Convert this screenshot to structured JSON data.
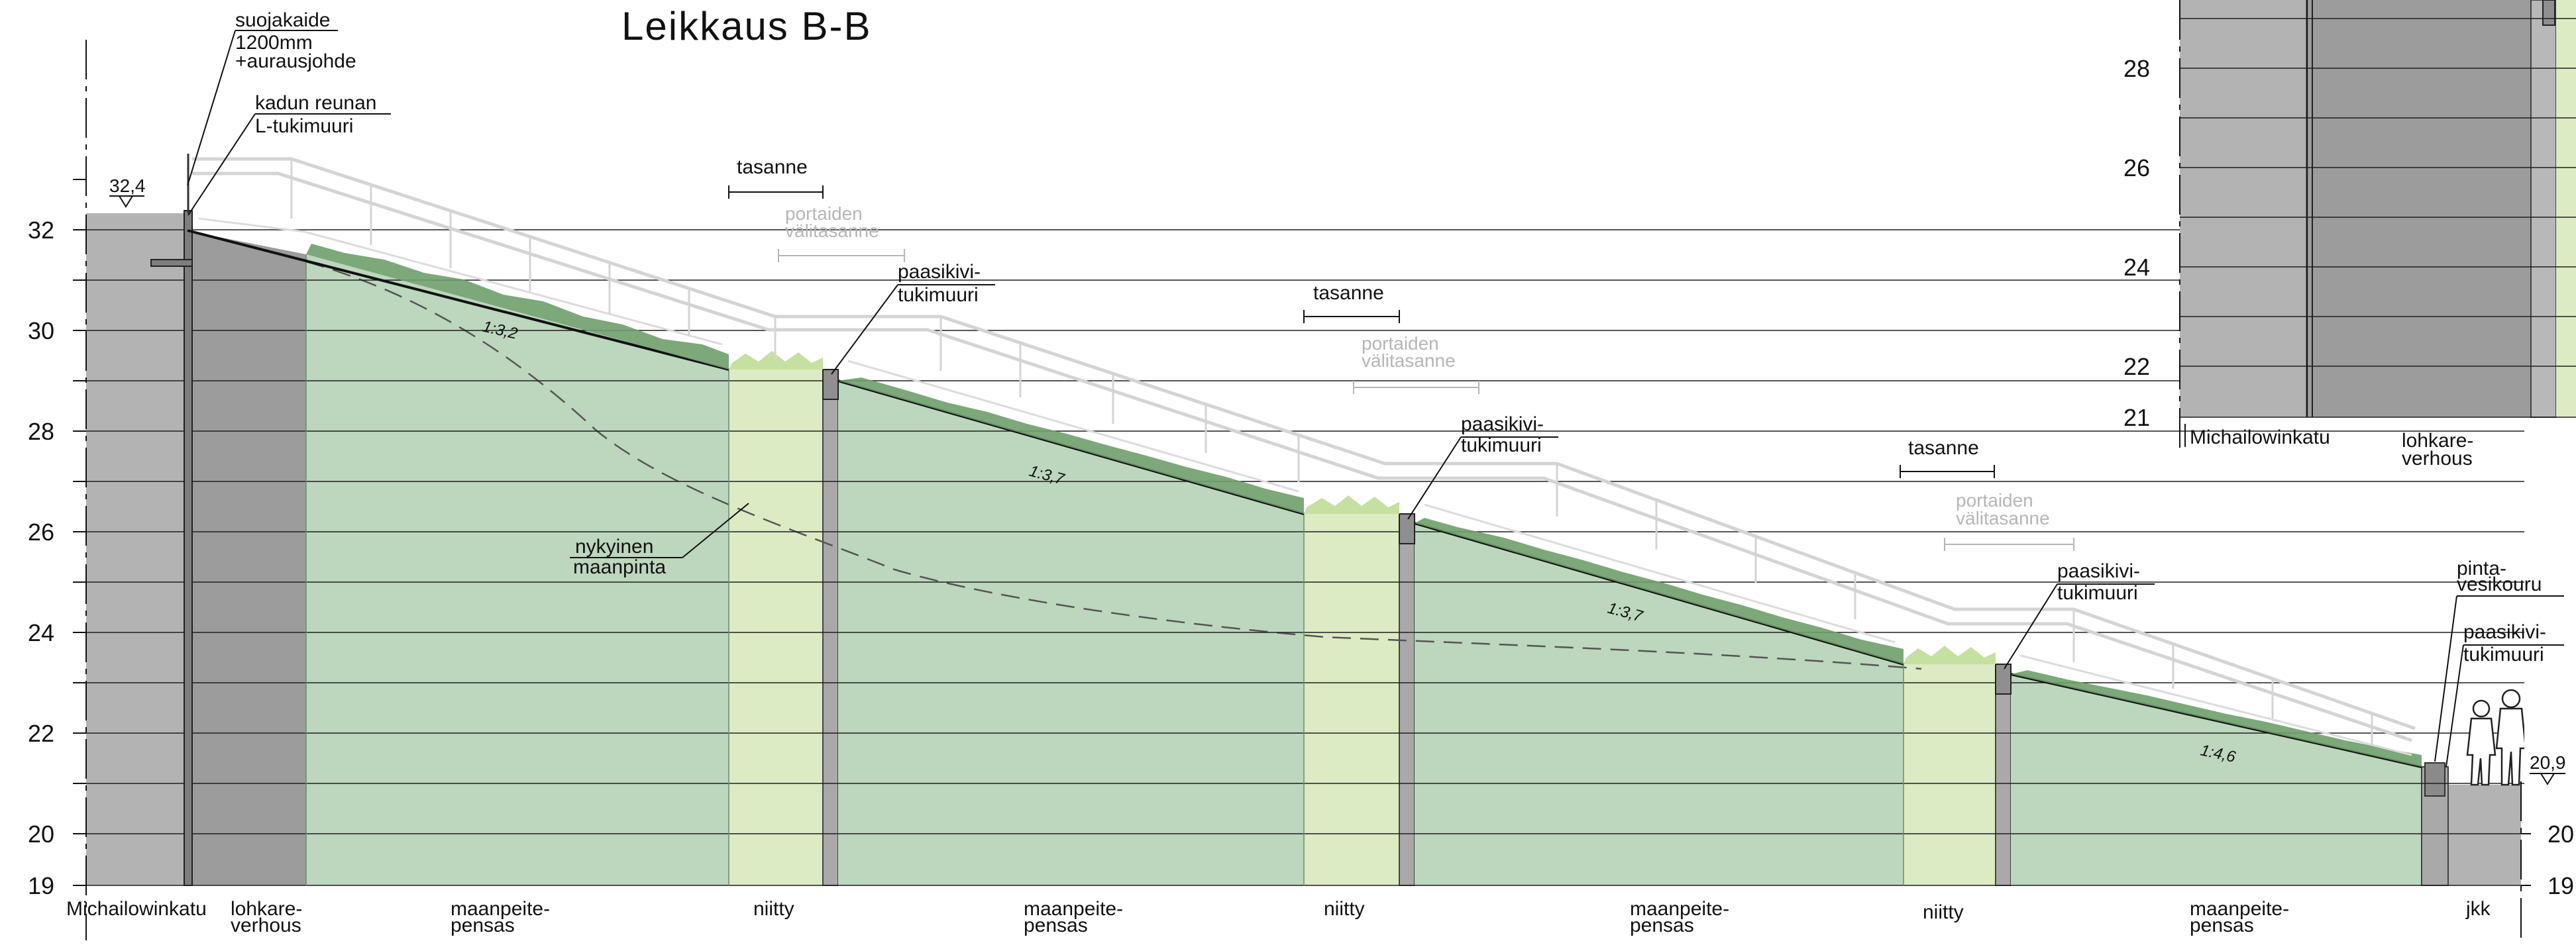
{
  "title": "Leikkaus B-B",
  "colors": {
    "street": "#b3b3b3",
    "boulder_cladding": "#9c9c9c",
    "shrub_green": "#bdd6be",
    "meadow_green": "#dcebc3",
    "wall": "#a9a9a9",
    "grid": "#1e1e1e",
    "foliage": "#6e9e6b",
    "railing": "#d4d4d4"
  },
  "main_axis_ticks": [
    "32",
    "30",
    "28",
    "26",
    "24",
    "22",
    "20",
    "19"
  ],
  "right_axis_ticks": [
    "20",
    "19"
  ],
  "elevation_marks": {
    "left": "32,4",
    "right": "20,9"
  },
  "callouts": {
    "railing": [
      "suojakaide",
      "1200mm",
      "+aurausjohde"
    ],
    "l_wall": [
      "kadun reunan",
      "L-tukimuuri"
    ],
    "landing_1": "tasanne",
    "landing_2": "tasanne",
    "landing_3": "tasanne",
    "stair_landing_1": [
      "portaiden",
      "välitasanne"
    ],
    "stair_landing_2": [
      "portaiden",
      "välitasanne"
    ],
    "stair_landing_3": [
      "portaiden",
      "välitasanne"
    ],
    "retaining_wall_1": [
      "paasikivi-",
      "tukimuuri"
    ],
    "retaining_wall_2": [
      "paasikivi-",
      "tukimuuri"
    ],
    "retaining_wall_3": [
      "paasikivi-",
      "tukimuuri"
    ],
    "retaining_wall_4": [
      "paasikivi-",
      "tukimuuri"
    ],
    "existing_ground": [
      "nykyinen",
      "maanpinta"
    ],
    "gutter": [
      "pinta-",
      "vesikouru"
    ]
  },
  "slopes": [
    "1:3,2",
    "1:3,7",
    "1:3,7",
    "1:4,6"
  ],
  "bottom_labels": {
    "street": "Michailowinkatu",
    "cladding": [
      "lohkare-",
      "verhous"
    ],
    "shrub_1": [
      "maanpeite-",
      "pensas"
    ],
    "meadow_1": "niitty",
    "shrub_2": [
      "maanpeite-",
      "pensas"
    ],
    "meadow_2": "niitty",
    "shrub_3": [
      "maanpeite-",
      "pensas"
    ],
    "meadow_3": "niitty",
    "shrub_4": [
      "maanpeite-",
      "pensas"
    ],
    "jkk": "jkk"
  },
  "inset": {
    "ticks": [
      "28",
      "26",
      "24",
      "22",
      "21"
    ],
    "labels": {
      "street": "Michailowinkatu",
      "cladding": [
        "lohkare-",
        "verhous"
      ]
    }
  }
}
